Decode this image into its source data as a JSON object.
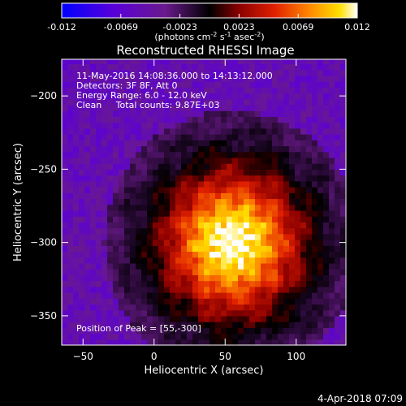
{
  "chart_data": {
    "type": "heatmap",
    "title": "Reconstructed RHESSI Image",
    "xlabel": "Heliocentric X (arcsec)",
    "ylabel": "Heliocentric Y (arcsec)",
    "xlim": [
      -65,
      135
    ],
    "ylim": [
      -370,
      -175
    ],
    "x_ticks": [
      -50,
      0,
      50,
      100
    ],
    "y_ticks": [
      -200,
      -250,
      -300,
      -350
    ],
    "colorbar": {
      "min": -0.012,
      "max": 0.012,
      "ticks": [
        "-0.012",
        "-0.0069",
        "-0.0023",
        "0.0023",
        "0.0069",
        "0.012"
      ],
      "unit_base": "(photons cm",
      "unit_exp1": "-2",
      "unit_mid": " s",
      "unit_exp2": "-1",
      "unit_mid2": " asec",
      "unit_exp3": "-2",
      "unit_end": ")"
    },
    "annotations": [
      "11-May-2016 14:08:36.000 to 14:13:12.000",
      "Detectors: 3F 8F, Att 0",
      "Energy Range: 6.0 - 12.0 keV",
      "Clean     Total counts: 9.87E+03"
    ],
    "peak_label": "Position of Peak = [55,-300]",
    "peak": [
      55,
      -300
    ],
    "source_model": {
      "center": [
        55,
        -300
      ],
      "core_sigma_arcsec": 30,
      "halo_sigma_arcsec": 55,
      "pixel_size_arcsec": 4
    }
  },
  "footer": {
    "timestamp": "4-Apr-2018 07:09"
  }
}
